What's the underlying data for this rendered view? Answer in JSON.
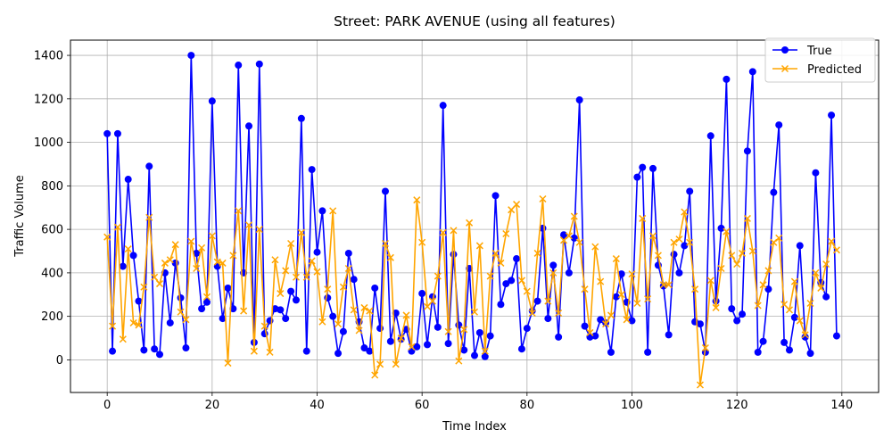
{
  "chart_data": {
    "type": "line",
    "title": "Street: PARK AVENUE (using all features)",
    "xlabel": "Time Index",
    "ylabel": "Traffic Volume",
    "xlim": [
      -7,
      147
    ],
    "ylim": [
      -150,
      1470
    ],
    "xticks": [
      0,
      20,
      40,
      60,
      80,
      100,
      120,
      140
    ],
    "yticks": [
      0,
      200,
      400,
      600,
      800,
      1000,
      1200,
      1400
    ],
    "grid": true,
    "legend_position": "upper right",
    "colors": {
      "True": "#0000ff",
      "Predicted": "#ffa500"
    },
    "series": [
      {
        "name": "True",
        "marker": "circle",
        "values": [
          1040,
          40,
          1040,
          430,
          830,
          480,
          270,
          45,
          890,
          50,
          25,
          400,
          170,
          445,
          285,
          55,
          1400,
          490,
          235,
          265,
          1190,
          430,
          190,
          330,
          235,
          1355,
          400,
          1075,
          80,
          1360,
          120,
          180,
          235,
          230,
          190,
          315,
          275,
          1110,
          40,
          875,
          495,
          685,
          285,
          200,
          30,
          130,
          490,
          370,
          175,
          55,
          40,
          330,
          145,
          775,
          85,
          215,
          95,
          140,
          40,
          60,
          305,
          70,
          290,
          150,
          1170,
          75,
          485,
          160,
          45,
          420,
          20,
          125,
          15,
          110,
          755,
          255,
          350,
          365,
          465,
          50,
          145,
          225,
          270,
          605,
          190,
          435,
          105,
          575,
          400,
          560,
          1195,
          155,
          105,
          110,
          185,
          170,
          35,
          290,
          395,
          265,
          180,
          840,
          885,
          35,
          880,
          435,
          340,
          115,
          485,
          400,
          525,
          775,
          175,
          165,
          35,
          1030,
          270,
          605,
          1290,
          235,
          180,
          210,
          960,
          1325,
          35,
          85,
          325,
          770,
          1080,
          80,
          45,
          195,
          525,
          105,
          30,
          860,
          355,
          290,
          1125,
          110
        ]
      },
      {
        "name": "Predicted",
        "marker": "x",
        "values": [
          565,
          155,
          610,
          95,
          510,
          170,
          160,
          335,
          655,
          380,
          350,
          445,
          460,
          530,
          220,
          185,
          545,
          420,
          515,
          290,
          570,
          450,
          445,
          -15,
          480,
          685,
          225,
          620,
          40,
          600,
          155,
          35,
          460,
          305,
          410,
          535,
          380,
          585,
          380,
          455,
          405,
          175,
          325,
          685,
          165,
          335,
          420,
          230,
          135,
          240,
          225,
          -70,
          -20,
          535,
          470,
          -20,
          100,
          205,
          60,
          735,
          540,
          245,
          270,
          385,
          585,
          130,
          595,
          -5,
          140,
          630,
          220,
          525,
          40,
          385,
          490,
          445,
          580,
          690,
          715,
          365,
          315,
          215,
          490,
          740,
          270,
          400,
          215,
          550,
          570,
          660,
          540,
          325,
          125,
          520,
          360,
          165,
          205,
          465,
          300,
          185,
          395,
          260,
          650,
          280,
          570,
          480,
          345,
          345,
          540,
          555,
          680,
          540,
          325,
          -115,
          55,
          365,
          240,
          420,
          590,
          480,
          440,
          490,
          650,
          500,
          250,
          345,
          410,
          540,
          560,
          255,
          230,
          360,
          180,
          115,
          260,
          400,
          330,
          440,
          545,
          505
        ]
      }
    ]
  }
}
